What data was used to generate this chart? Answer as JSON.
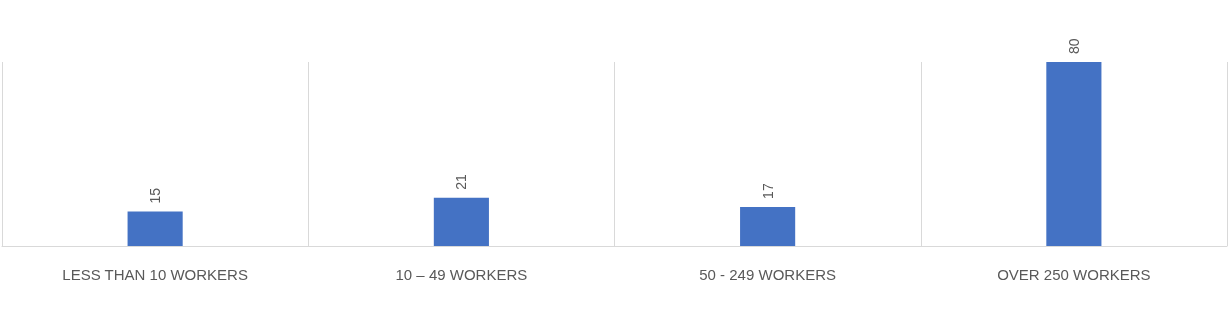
{
  "chart_data": {
    "type": "bar",
    "categories": [
      "LESS THAN 10 WORKERS",
      "10 – 49 WORKERS",
      "50 - 249 WORKERS",
      "OVER 250 WORKERS"
    ],
    "values": [
      15,
      21,
      17,
      80
    ],
    "color": "#4472c4",
    "data_labels": true,
    "grid": "x",
    "tick_labels": "x"
  }
}
